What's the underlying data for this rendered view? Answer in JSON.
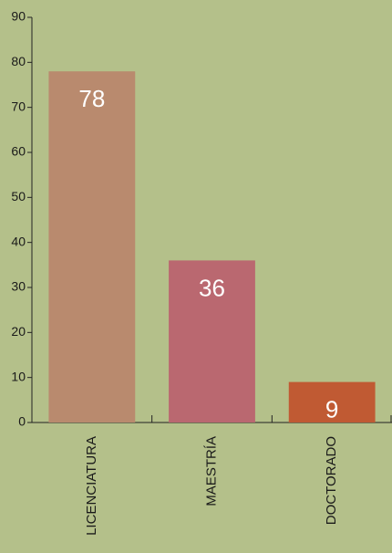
{
  "chart_data": {
    "type": "bar",
    "categories": [
      "LICENCIATURA",
      "MAESTRÍA",
      "DOCTORADO"
    ],
    "values": [
      78,
      36,
      9
    ],
    "colors": [
      "#b98a6e",
      "#ba6870",
      "#c05a33"
    ],
    "ylim": [
      0,
      90
    ],
    "yticks": [
      0,
      10,
      20,
      30,
      40,
      50,
      60,
      70,
      80,
      90
    ],
    "grid": false
  }
}
